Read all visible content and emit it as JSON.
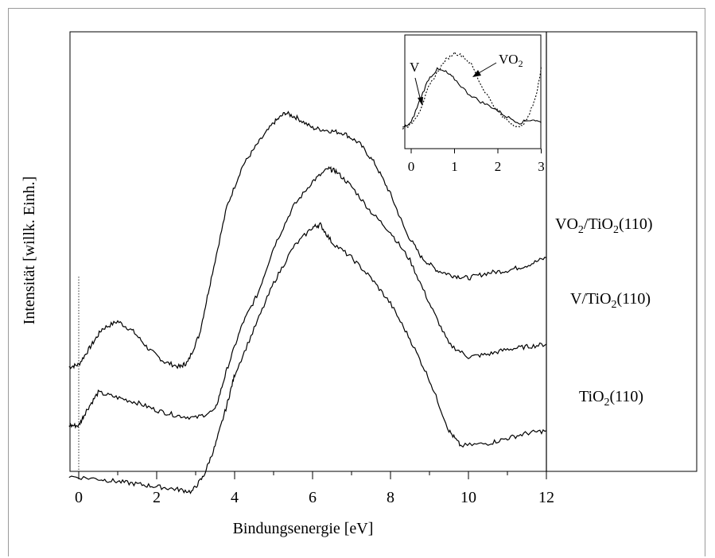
{
  "chart_data": [
    {
      "type": "line",
      "xlabel": "Bindungsenergie [eV]",
      "ylabel": "Intensität [willk. Einh.]",
      "xlim": [
        -0.25,
        16.0
      ],
      "x_ticks": [
        0,
        2,
        4,
        6,
        8,
        10,
        12
      ],
      "grid": false,
      "marker_line_x": 0,
      "series": [
        {
          "name": "VO2/TiO2(110)",
          "label_main": "VO",
          "label_sub": "2",
          "label_mid": "/TiO",
          "label_sub2": "2",
          "label_tail": "(110)",
          "x": [
            -0.25,
            0.0,
            0.3,
            0.6,
            1.0,
            1.4,
            1.8,
            2.2,
            2.6,
            2.8,
            3.1,
            3.4,
            3.8,
            4.2,
            4.6,
            5.0,
            5.3,
            5.6,
            6.0,
            6.4,
            6.8,
            7.2,
            7.6,
            8.0,
            8.4,
            8.8,
            9.2,
            9.6,
            10.0,
            10.5,
            11.0,
            11.5,
            12.0
          ],
          "y": [
            20.5,
            21.0,
            24.5,
            28.0,
            29.5,
            27.5,
            24.0,
            21.5,
            20.5,
            21.5,
            27.0,
            38.0,
            52.0,
            60.0,
            64.5,
            68.5,
            70.5,
            69.5,
            67.5,
            67.0,
            66.5,
            64.5,
            60.5,
            54.5,
            47.0,
            42.0,
            39.5,
            38.5,
            38.0,
            39.0,
            39.5,
            40.5,
            42.0
          ]
        },
        {
          "name": "V/TiO2(110)",
          "label_main": "V/TiO",
          "label_sub": "2",
          "label_tail": "(110)",
          "x": [
            -0.25,
            0.0,
            0.2,
            0.5,
            1.0,
            1.5,
            2.0,
            2.5,
            3.0,
            3.5,
            3.8,
            4.2,
            4.6,
            5.0,
            5.5,
            6.0,
            6.4,
            6.6,
            7.0,
            7.5,
            8.0,
            8.5,
            9.0,
            9.5,
            10.0,
            10.5,
            11.0,
            11.5,
            12.0
          ],
          "y": [
            9.0,
            9.0,
            12.0,
            15.5,
            14.5,
            13.5,
            12.0,
            11.0,
            10.5,
            12.0,
            20.0,
            29.0,
            35.0,
            44.0,
            52.0,
            57.0,
            59.5,
            59.0,
            56.0,
            51.0,
            47.0,
            41.5,
            33.0,
            25.0,
            22.5,
            23.0,
            24.0,
            24.5,
            25.0
          ]
        },
        {
          "name": "TiO2(110)",
          "label_main": "TiO",
          "label_sub": "2",
          "label_tail": "(110)",
          "x": [
            -0.25,
            0.5,
            1.0,
            1.5,
            2.0,
            2.5,
            2.9,
            3.2,
            3.5,
            3.8,
            4.0,
            4.5,
            5.0,
            5.5,
            6.0,
            6.2,
            6.5,
            7.0,
            7.5,
            8.0,
            8.5,
            9.0,
            9.5,
            9.8,
            10.5,
            11.0,
            11.5,
            12.0
          ],
          "y": [
            -1.0,
            -1.5,
            -2.0,
            -2.5,
            -3.0,
            -3.5,
            -4.0,
            -1.0,
            5.0,
            13.0,
            19.0,
            28.0,
            37.0,
            44.0,
            48.0,
            48.5,
            45.0,
            42.0,
            38.0,
            33.0,
            26.0,
            18.0,
            8.0,
            5.0,
            5.5,
            6.5,
            7.5,
            8.0
          ]
        }
      ]
    },
    {
      "type": "line",
      "role": "inset",
      "xlim": [
        -0.2,
        3.0
      ],
      "x_ticks": [
        0,
        1,
        2,
        3
      ],
      "annotations": [
        {
          "text": "V",
          "sub": ""
        },
        {
          "text": "VO",
          "sub": "2"
        }
      ],
      "series": [
        {
          "name": "V",
          "style": "solid",
          "x": [
            -0.2,
            0.0,
            0.2,
            0.4,
            0.6,
            0.8,
            1.0,
            1.3,
            1.6,
            1.9,
            2.2,
            2.5,
            2.8,
            3.0
          ],
          "y": [
            1.0,
            1.6,
            4.2,
            6.6,
            7.7,
            7.4,
            6.6,
            5.0,
            4.0,
            3.3,
            2.3,
            1.6,
            2.0,
            1.6
          ]
        },
        {
          "name": "VO2",
          "style": "dotted",
          "x": [
            -0.2,
            0.0,
            0.2,
            0.4,
            0.6,
            0.8,
            1.0,
            1.2,
            1.4,
            1.6,
            1.9,
            2.1,
            2.3,
            2.5,
            2.7,
            2.9,
            3.0
          ],
          "y": [
            1.0,
            1.4,
            3.0,
            5.6,
            7.4,
            8.8,
            9.6,
            9.2,
            8.2,
            6.0,
            3.6,
            2.3,
            1.6,
            1.0,
            2.2,
            5.0,
            8.0
          ]
        }
      ]
    }
  ]
}
